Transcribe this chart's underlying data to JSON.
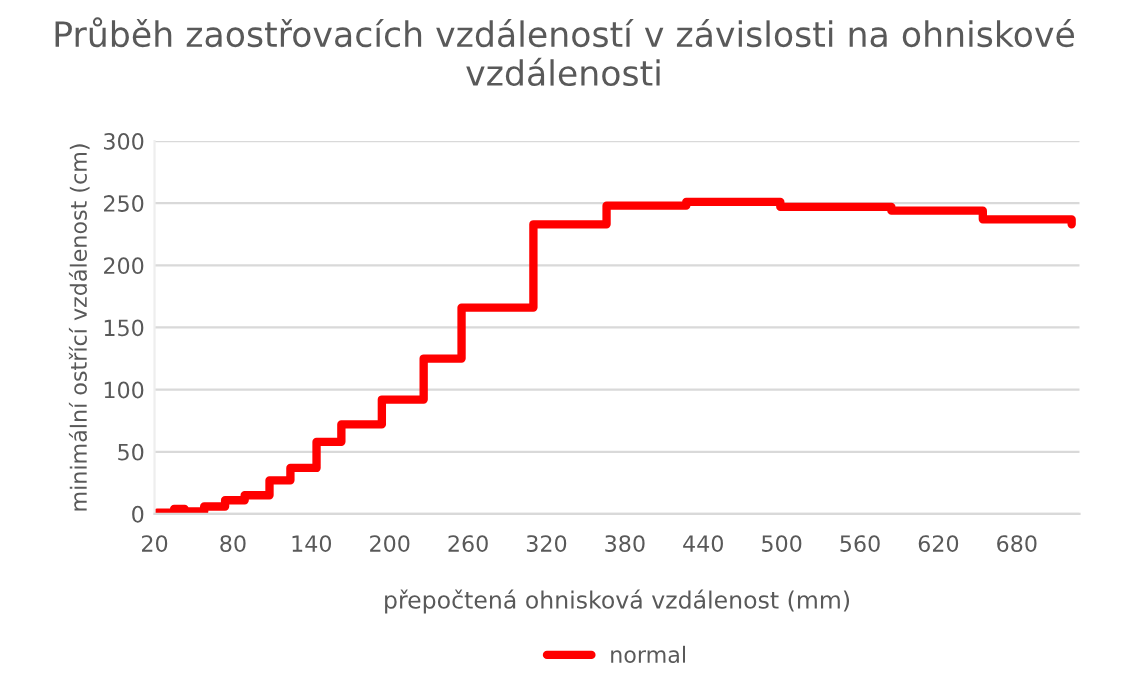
{
  "chart_data": {
    "type": "step",
    "title": "Průběh zaostřovacích vzdáleností v závislosti na ohniskové vzdálenosti",
    "xlabel": "přepočtená ohnisková vzdálenost (mm)",
    "ylabel": "minimální ostřící vzdálenost (cm)",
    "x": [
      22,
      35,
      43,
      58,
      74,
      89,
      108,
      124,
      144,
      163,
      194,
      226,
      255,
      310,
      366,
      427,
      499,
      584,
      654,
      720,
      722
    ],
    "series": [
      {
        "name": "normal",
        "color": "#ff0000",
        "values": [
          1,
          4,
          2,
          6,
          11,
          15,
          27,
          37,
          58,
          72,
          92,
          125,
          166,
          233,
          248,
          251,
          247,
          244,
          237,
          237,
          233
        ]
      }
    ],
    "xlim": [
      20,
      728
    ],
    "xticks": [
      20,
      80,
      140,
      200,
      260,
      320,
      380,
      440,
      500,
      560,
      620,
      680
    ],
    "ylim": [
      0,
      300
    ],
    "yticks": [
      0,
      50,
      100,
      150,
      200,
      250,
      300
    ],
    "grid": "y",
    "legend": "bottom",
    "line_style": "solid",
    "marker": "none"
  }
}
